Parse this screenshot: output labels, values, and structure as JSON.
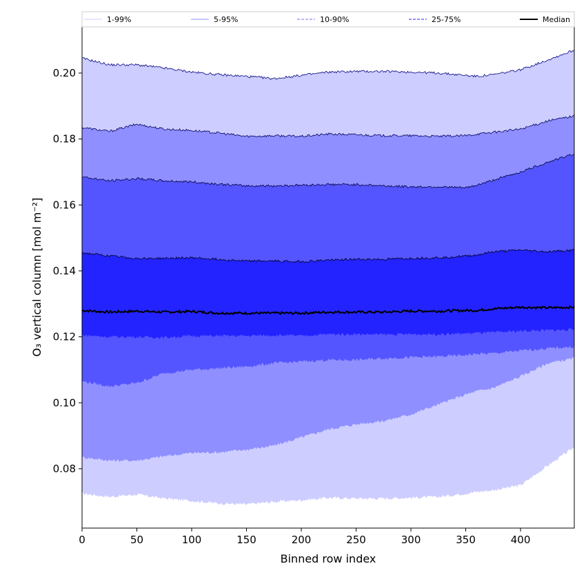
{
  "chart_data": {
    "type": "area",
    "title": "",
    "xlabel": "Binned row index",
    "ylabel": "O₃ vertical column [mol m⁻²]",
    "xlim": [
      0,
      449
    ],
    "ylim": [
      0.062,
      0.214
    ],
    "x_ticks": [
      0,
      50,
      100,
      150,
      200,
      250,
      300,
      350,
      400
    ],
    "y_ticks": [
      0.08,
      0.1,
      0.12,
      0.14,
      0.16,
      0.18,
      0.2
    ],
    "y_tick_labels": [
      "0.08",
      "0.10",
      "0.12",
      "0.14",
      "0.16",
      "0.18",
      "0.20"
    ],
    "grid": false,
    "legend_position": "top",
    "x": [
      0,
      25,
      50,
      75,
      100,
      125,
      150,
      175,
      200,
      225,
      250,
      275,
      300,
      325,
      350,
      360,
      375,
      400,
      425,
      449
    ],
    "bands": [
      {
        "name": "1-99%",
        "color": "#cdcdff",
        "line_color": "#000080",
        "lower": [
          0.0725,
          0.0715,
          0.0722,
          0.071,
          0.0703,
          0.0695,
          0.0692,
          0.07,
          0.0705,
          0.0712,
          0.071,
          0.071,
          0.0712,
          0.0715,
          0.0725,
          0.073,
          0.0735,
          0.075,
          0.081,
          0.0865
        ],
        "upper": [
          0.2045,
          0.2025,
          0.2025,
          0.2015,
          0.2003,
          0.1995,
          0.199,
          0.1983,
          0.1993,
          0.2003,
          0.2005,
          0.2005,
          0.2003,
          0.2,
          0.1993,
          0.199,
          0.1995,
          0.201,
          0.204,
          0.207
        ]
      },
      {
        "name": "5-95%",
        "color": "#8f8fff",
        "line_color": "#000060",
        "lower": [
          0.0835,
          0.0825,
          0.0825,
          0.0838,
          0.0848,
          0.085,
          0.0858,
          0.087,
          0.0895,
          0.092,
          0.0935,
          0.0945,
          0.0965,
          0.0995,
          0.1025,
          0.1035,
          0.1045,
          0.108,
          0.112,
          0.1135
        ],
        "upper": [
          0.1835,
          0.1823,
          0.1845,
          0.183,
          0.1826,
          0.1818,
          0.1808,
          0.181,
          0.1808,
          0.1815,
          0.1813,
          0.181,
          0.181,
          0.1808,
          0.181,
          0.1815,
          0.182,
          0.183,
          0.1855,
          0.187
        ]
      },
      {
        "name": "10-90%",
        "color": "#5555ff",
        "line_color": "#000040",
        "lower": [
          0.1065,
          0.105,
          0.106,
          0.109,
          0.11,
          0.1105,
          0.111,
          0.112,
          0.1125,
          0.113,
          0.113,
          0.1135,
          0.1138,
          0.114,
          0.1145,
          0.1148,
          0.115,
          0.1158,
          0.1165,
          0.117
        ],
        "upper": [
          0.1685,
          0.1673,
          0.168,
          0.1673,
          0.167,
          0.1663,
          0.1658,
          0.1658,
          0.166,
          0.1662,
          0.1662,
          0.1658,
          0.1655,
          0.1655,
          0.1652,
          0.166,
          0.1675,
          0.17,
          0.173,
          0.1755
        ]
      },
      {
        "name": "25-75%",
        "color": "#2323ff",
        "line_color": "#000020",
        "lower": [
          0.1205,
          0.12,
          0.12,
          0.1198,
          0.1203,
          0.1203,
          0.1203,
          0.1205,
          0.1203,
          0.1208,
          0.1208,
          0.1207,
          0.1208,
          0.1208,
          0.121,
          0.1212,
          0.1213,
          0.1218,
          0.122,
          0.1222
        ],
        "upper": [
          0.1455,
          0.1445,
          0.1438,
          0.1438,
          0.144,
          0.1435,
          0.143,
          0.143,
          0.1428,
          0.1433,
          0.1435,
          0.1435,
          0.1438,
          0.144,
          0.1445,
          0.1448,
          0.1458,
          0.1463,
          0.1458,
          0.1463
        ]
      }
    ],
    "median": {
      "name": "Median",
      "color": "#000000",
      "values": [
        0.128,
        0.1275,
        0.1278,
        0.1275,
        0.1277,
        0.1272,
        0.1272,
        0.1272,
        0.1272,
        0.1275,
        0.1275,
        0.1275,
        0.1278,
        0.1278,
        0.128,
        0.128,
        0.1285,
        0.129,
        0.1288,
        0.129
      ]
    },
    "legend": [
      {
        "label": "1-99%",
        "line_color": "#d8d8ff",
        "dash": "none"
      },
      {
        "label": "5-95%",
        "line_color": "#a8a8ff",
        "dash": "none"
      },
      {
        "label": "10-90%",
        "line_color": "#8c8cff",
        "dash": "dashed"
      },
      {
        "label": "25-75%",
        "line_color": "#5050ff",
        "dash": "dashed"
      },
      {
        "label": "Median",
        "line_color": "#000000",
        "dash": "none"
      }
    ]
  }
}
